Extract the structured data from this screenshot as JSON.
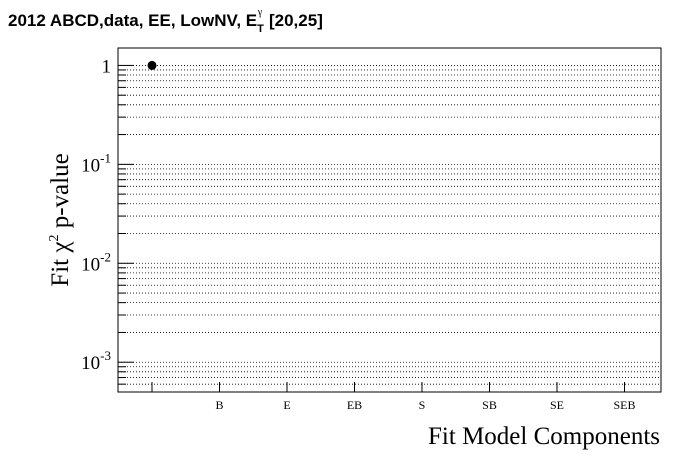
{
  "title": {
    "main": "2012 ABCD,data, EE, LowNV, E",
    "sub": "T",
    "sup": "γ",
    "range": " [20,25]"
  },
  "chart_data": {
    "type": "scatter",
    "categories": [
      "",
      "B",
      "E",
      "EB",
      "S",
      "SB",
      "SE",
      "SEB"
    ],
    "points": [
      {
        "category": "",
        "value": 1.0
      }
    ],
    "xlabel": "Fit Model Components",
    "ylabel": {
      "prefix": "Fit ",
      "chi": "χ",
      "power": "2",
      "suffix": " p-value"
    },
    "yscale": "log",
    "ylim": [
      0.0005,
      1.5
    ],
    "y_ticks": [
      {
        "base": "1",
        "exp": "",
        "value": 1
      },
      {
        "base": "10",
        "exp": "-1",
        "value": 0.1
      },
      {
        "base": "10",
        "exp": "-2",
        "value": 0.01
      },
      {
        "base": "10",
        "exp": "-3",
        "value": 0.001
      }
    ],
    "grid": "y-dotted",
    "marker_color": "#000000"
  }
}
